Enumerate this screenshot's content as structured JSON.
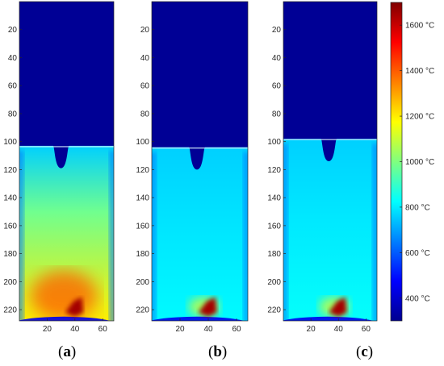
{
  "chart_data": {
    "type": "heatmap",
    "colormap": "jet",
    "colorbar": {
      "range": [
        300,
        1700
      ],
      "tick_labels": [
        "400 °C",
        "600 °C",
        "800 °C",
        "1000 °C",
        "1200 °C",
        "1400 °C",
        "1600 °C"
      ],
      "tick_values": [
        400,
        600,
        800,
        1000,
        1200,
        1400,
        1600
      ]
    },
    "panels": [
      {
        "label": "a",
        "xlim": [
          0,
          68
        ],
        "ylim": [
          0,
          228
        ],
        "x_tick_labels": [
          "20",
          "40",
          "60"
        ],
        "x_tick_values": [
          20,
          40,
          60
        ],
        "y_tick_labels": [
          "20",
          "40",
          "60",
          "80",
          "100",
          "120",
          "140",
          "160",
          "180",
          "200",
          "220"
        ],
        "y_tick_values": [
          20,
          40,
          60,
          80,
          100,
          120,
          140,
          160,
          180,
          200,
          220
        ],
        "notch_center_x": 30,
        "surface_y": 103,
        "bottom_temperature_c": 1200,
        "hotspot_temperature_c": 1650
      },
      {
        "label": "b",
        "xlim": [
          0,
          68
        ],
        "ylim": [
          0,
          228
        ],
        "x_tick_labels": [
          "20",
          "40",
          "60"
        ],
        "x_tick_values": [
          20,
          40,
          60
        ],
        "y_tick_labels": [
          "20",
          "40",
          "60",
          "80",
          "100",
          "120",
          "140",
          "160",
          "180",
          "200",
          "220"
        ],
        "y_tick_values": [
          20,
          40,
          60,
          80,
          100,
          120,
          140,
          160,
          180,
          200,
          220
        ],
        "notch_center_x": 32,
        "surface_y": 104,
        "bottom_temperature_c": 820,
        "hotspot_temperature_c": 1650
      },
      {
        "label": "c",
        "xlim": [
          0,
          68
        ],
        "ylim": [
          0,
          228
        ],
        "x_tick_labels": [
          "20",
          "40",
          "60"
        ],
        "x_tick_values": [
          20,
          40,
          60
        ],
        "y_tick_labels": [
          "20",
          "40",
          "60",
          "80",
          "100",
          "120",
          "140",
          "160",
          "180",
          "200",
          "220"
        ],
        "y_tick_values": [
          20,
          40,
          60,
          80,
          100,
          120,
          140,
          160,
          180,
          200,
          220
        ],
        "notch_center_x": 33,
        "surface_y": 98,
        "bottom_temperature_c": 830,
        "hotspot_temperature_c": 1650
      }
    ]
  },
  "captions": [
    {
      "open": "(",
      "letter": "a",
      "close": ")"
    },
    {
      "open": "(",
      "letter": "b",
      "close": ")"
    },
    {
      "open": "(",
      "letter": "c",
      "close": ")"
    }
  ]
}
